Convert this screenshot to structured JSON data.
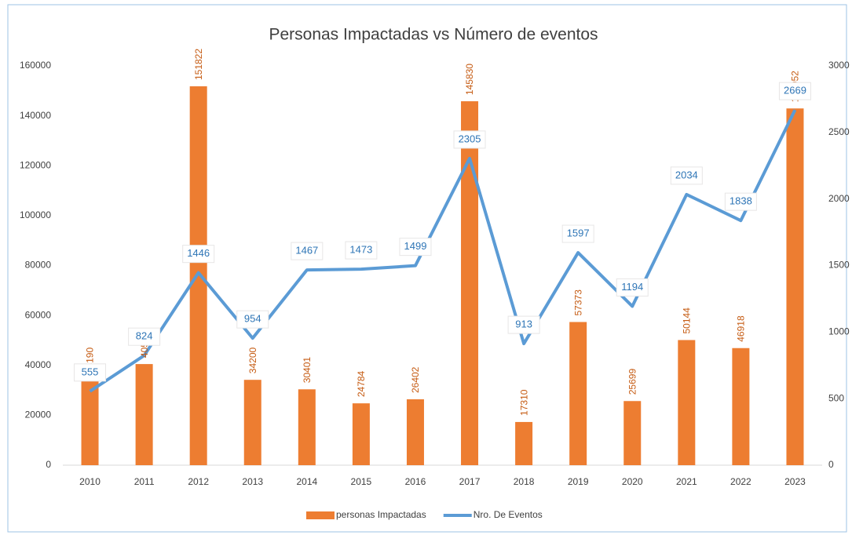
{
  "chart_data": {
    "type": "combo",
    "title": "Personas Impactadas vs Número de eventos",
    "categories": [
      "2010",
      "2011",
      "2012",
      "2013",
      "2014",
      "2015",
      "2016",
      "2017",
      "2018",
      "2019",
      "2020",
      "2021",
      "2022",
      "2023"
    ],
    "series": [
      {
        "name": "personas Impactadas",
        "type": "bar",
        "color": "#ed7d31",
        "values": [
          34190,
          40520,
          151822,
          34200,
          30401,
          24784,
          26402,
          145830,
          17310,
          57373,
          25699,
          50144,
          46918,
          142952
        ]
      },
      {
        "name": "Nro. De Eventos",
        "type": "line",
        "axis": "y2",
        "color": "#5b9bd5",
        "values": [
          555,
          824,
          1446,
          954,
          1467,
          1473,
          1499,
          2305,
          913,
          1597,
          1194,
          2034,
          1838,
          2669
        ]
      }
    ],
    "ylim": [
      0,
      160000
    ],
    "yticks": [
      0,
      20000,
      40000,
      60000,
      80000,
      100000,
      120000,
      140000,
      160000
    ],
    "y2lim": [
      0,
      3000
    ],
    "y2ticks": [
      0,
      500,
      1000,
      1500,
      2000,
      2500,
      3000
    ],
    "legend": "bottom"
  }
}
